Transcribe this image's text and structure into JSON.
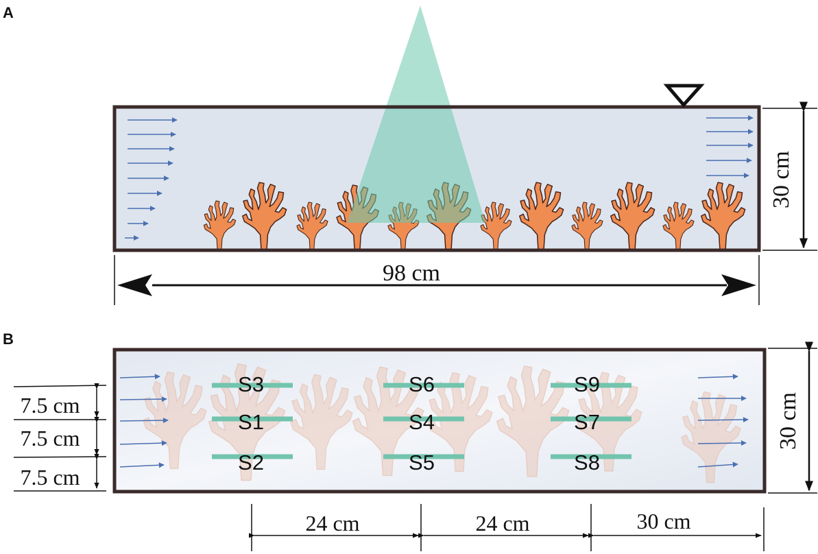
{
  "panel_a": {
    "label": "A",
    "height_dim": "30 cm",
    "length_dim": "98 cm",
    "colors": {
      "water": "#dde4ee",
      "frame": "#3a2a2a",
      "coral": "#ee8c52",
      "coral_outline": "#4a2418",
      "beam": "#6cc8ad",
      "flow_arrow": "#4a6fb0"
    }
  },
  "panel_b": {
    "label": "B",
    "height_dim": "30 cm",
    "spacing_labels": [
      "7.5 cm",
      "7.5 cm",
      "7.5 cm"
    ],
    "longitudinal_labels": [
      "24 cm",
      "24 cm",
      "30 cm"
    ],
    "sensors": [
      {
        "id": "S3"
      },
      {
        "id": "S6"
      },
      {
        "id": "S9"
      },
      {
        "id": "S1"
      },
      {
        "id": "S4"
      },
      {
        "id": "S7"
      },
      {
        "id": "S2"
      },
      {
        "id": "S5"
      },
      {
        "id": "S8"
      }
    ],
    "colors": {
      "sensor_bar": "#72c4ad",
      "coral_faded": "#e9c4b4"
    }
  }
}
